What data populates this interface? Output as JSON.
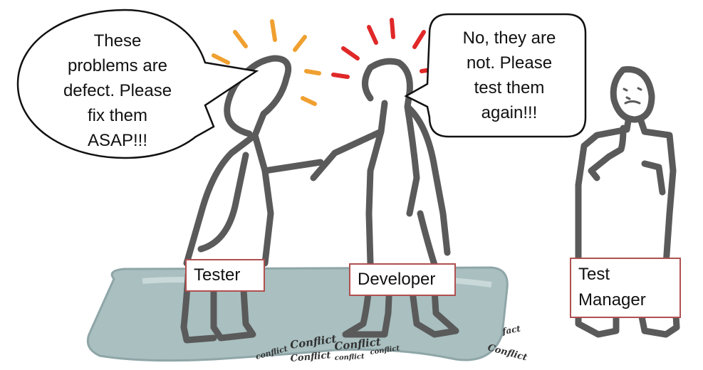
{
  "speech": {
    "tester": [
      "These",
      "problems are",
      "defect. Please",
      "fix them",
      "ASAP!!!"
    ],
    "developer": [
      "No, they are",
      "not. Please",
      "test them",
      "again!!!"
    ]
  },
  "labels": {
    "tester": "Tester",
    "developer": "Developer",
    "test_manager": [
      "Test",
      "Manager"
    ]
  },
  "ground_words": [
    "Conflict",
    "Conflict",
    "conflict",
    "Conflict",
    "conflict",
    "conflict",
    "fact",
    "Conflict"
  ],
  "colors": {
    "figure": "#5a5a5a",
    "tester_rays": "#f0a030",
    "developer_rays": "#e02828",
    "platform": "#a9bfc0",
    "label_border": "#b05050"
  }
}
